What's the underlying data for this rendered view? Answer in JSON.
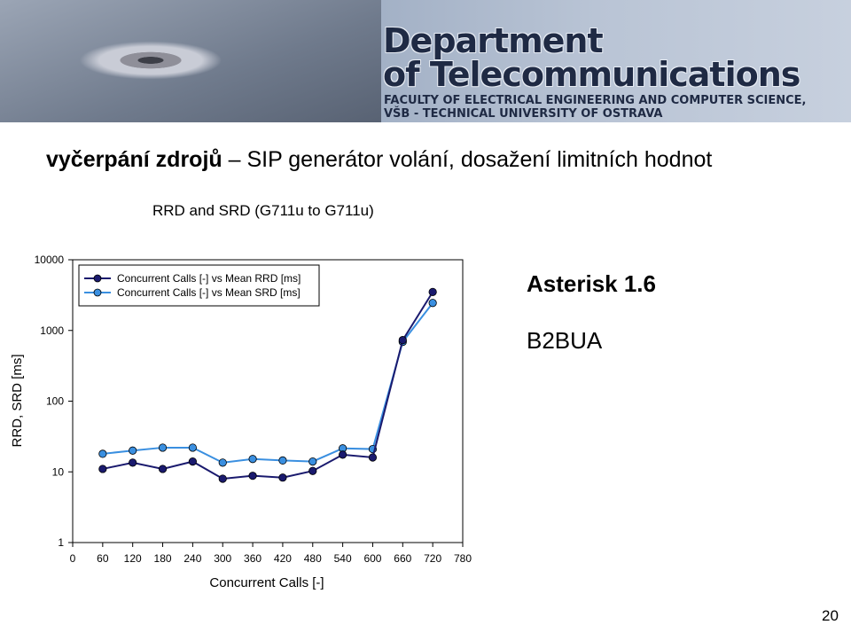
{
  "banner": {
    "line1": "Department",
    "line2": "of Telecommunications",
    "faculty": "FACULTY OF ELECTRICAL ENGINEERING AND COMPUTER SCIENCE,",
    "university": "VŠB - TECHNICAL UNIVERSITY OF OSTRAVA"
  },
  "slide": {
    "title_bold": "vyčerpání zdrojů",
    "title_rest": " – SIP generátor volání, dosažení limitních hodnot",
    "asterisk": "Asterisk 1.6",
    "b2bua": "B2BUA",
    "page_number": "20"
  },
  "chart_data": {
    "type": "line",
    "title": "RRD and SRD (G711u to G711u)",
    "xlabel": "Concurrent Calls [-]",
    "ylabel": "RRD, SRD [ms]",
    "x_ticks": [
      0,
      60,
      120,
      180,
      240,
      300,
      360,
      420,
      480,
      540,
      600,
      660,
      720,
      780
    ],
    "xlim": [
      0,
      780
    ],
    "y_ticks": [
      1,
      10,
      100,
      1000,
      10000
    ],
    "y_tick_labels": [
      "1",
      "10",
      "100",
      "1000",
      "10000"
    ],
    "ylim": [
      1,
      10000
    ],
    "y_scale": "log",
    "grid": false,
    "legend_position": "top-left",
    "x": [
      60,
      120,
      180,
      240,
      300,
      360,
      420,
      480,
      540,
      600,
      660,
      720
    ],
    "series": [
      {
        "name": "Concurrent Calls [-] vs Mean RRD [ms]",
        "color": "#1a1a6e",
        "values": [
          11,
          13.5,
          11,
          14,
          8,
          8.8,
          8.3,
          10.3,
          17.5,
          16,
          730,
          3500
        ]
      },
      {
        "name": "Concurrent Calls [-] vs Mean SRD [ms]",
        "color": "#3a8fe0",
        "values": [
          18,
          20,
          22,
          22,
          13.5,
          15.2,
          14.5,
          14,
          21.5,
          21,
          690,
          2450
        ]
      }
    ]
  }
}
